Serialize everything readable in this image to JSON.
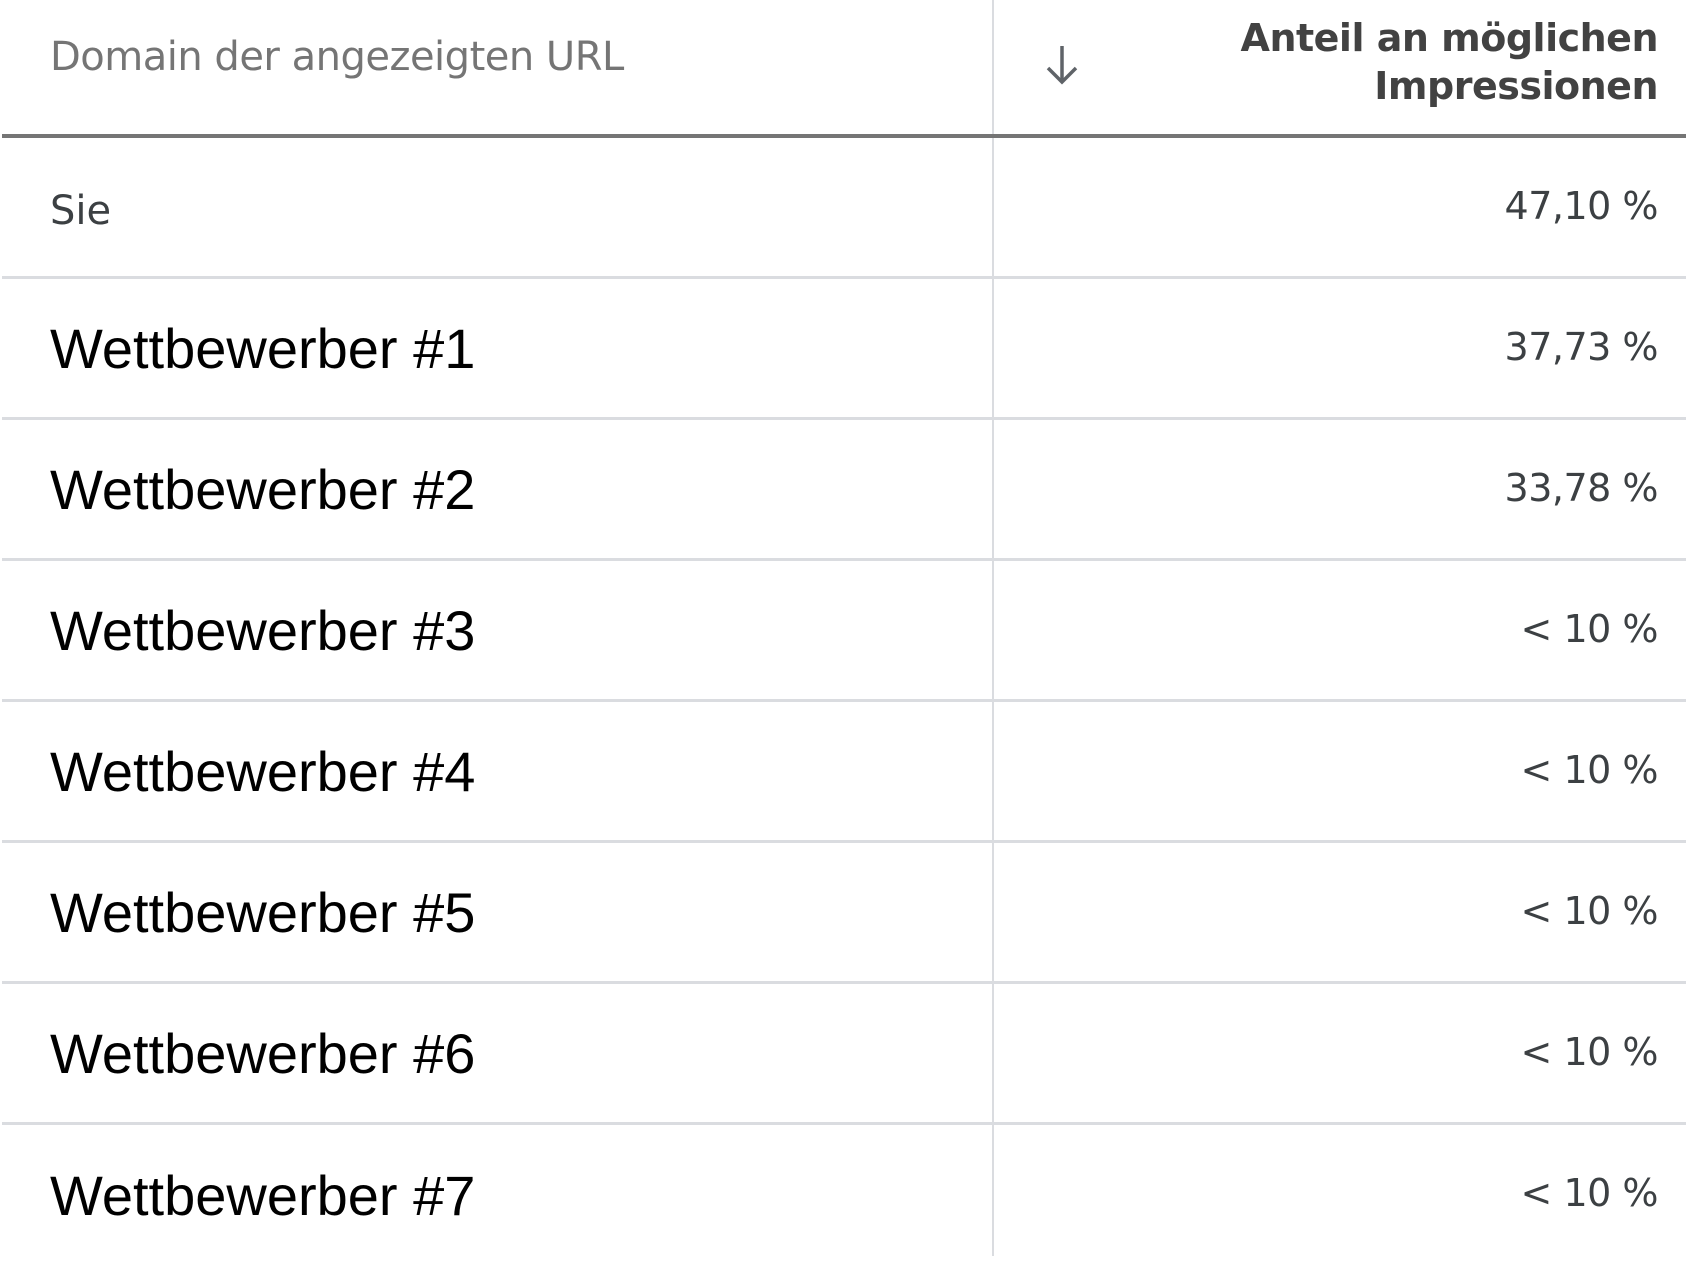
{
  "header": {
    "domain_label": "Domain der angezeigten URL",
    "sort_icon": "arrow-down-icon",
    "share_label_line1": "Anteil an möglichen",
    "share_label_line2": "Impressionen"
  },
  "rows": [
    {
      "domain": "Sie",
      "share": "47,10 %"
    },
    {
      "domain": "Wettbewerber #1",
      "share": "37,73 %"
    },
    {
      "domain": "Wettbewerber #2",
      "share": "33,78 %"
    },
    {
      "domain": "Wettbewerber #3",
      "share": "< 10 %"
    },
    {
      "domain": "Wettbewerber #4",
      "share": "< 10 %"
    },
    {
      "domain": "Wettbewerber #5",
      "share": "< 10 %"
    },
    {
      "domain": "Wettbewerber #6",
      "share": "< 10 %"
    },
    {
      "domain": "Wettbewerber #7",
      "share": "< 10 %"
    }
  ],
  "colors": {
    "header_text": "#757575",
    "header_border": "#757575",
    "row_border": "#dadce0",
    "value_text": "#3c4043",
    "competitor_text": "#000000"
  }
}
